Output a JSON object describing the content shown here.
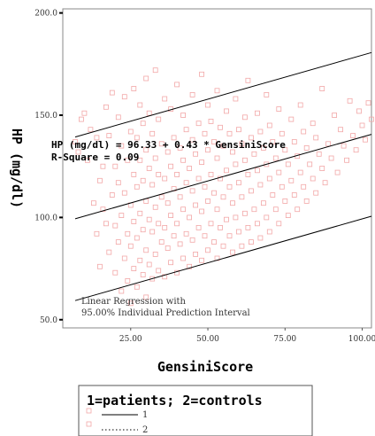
{
  "chart_data": {
    "type": "scatter",
    "xlabel": "GensiniScore",
    "ylabel": "HP (mg/dl)",
    "xlim": [
      3,
      103
    ],
    "ylim": [
      46,
      202
    ],
    "x_ticks": [
      25,
      50,
      75,
      100
    ],
    "x_tick_labels": [
      "25.00",
      "50.00",
      "75.00",
      "100.00"
    ],
    "y_ticks": [
      50,
      100,
      150,
      200
    ],
    "y_tick_labels": [
      "50.0",
      "100.0",
      "150.0",
      "200.0"
    ],
    "grid": false,
    "annotations": {
      "equation": "HP (mg/dl) = 96.33 + 0.43 * GensiniScore",
      "r_square": "R-Square = 0.09",
      "note_line1": "Linear Regression with",
      "note_line2": "95.00% Individual Prediction Interval"
    },
    "regression": {
      "intercept": 96.33,
      "slope": 0.43,
      "x_range": [
        7,
        103
      ]
    },
    "prediction_interval": {
      "offset": 40
    },
    "legend": {
      "title": "1=patients; 2=controls",
      "entries": [
        {
          "label": "1",
          "line_style": "solid"
        },
        {
          "label": "2",
          "line_style": "dotted"
        }
      ],
      "position": "bottom"
    },
    "marker_color": "#f2a7a7",
    "line_color": "#000000",
    "points": [
      [
        7,
        137
      ],
      [
        8,
        132
      ],
      [
        9,
        148
      ],
      [
        10,
        151
      ],
      [
        11,
        128
      ],
      [
        12,
        143
      ],
      [
        13,
        107
      ],
      [
        14,
        92
      ],
      [
        14,
        139
      ],
      [
        15,
        76
      ],
      [
        15,
        118
      ],
      [
        16,
        104
      ],
      [
        16,
        125
      ],
      [
        17,
        154
      ],
      [
        17,
        97
      ],
      [
        18,
        83
      ],
      [
        18,
        140
      ],
      [
        19,
        111
      ],
      [
        19,
        161
      ],
      [
        20,
        73
      ],
      [
        20,
        96
      ],
      [
        20,
        125
      ],
      [
        21,
        88
      ],
      [
        21,
        117
      ],
      [
        21,
        149
      ],
      [
        22,
        64
      ],
      [
        22,
        101
      ],
      [
        22,
        135
      ],
      [
        23,
        80
      ],
      [
        23,
        112
      ],
      [
        23,
        159
      ],
      [
        24,
        69
      ],
      [
        24,
        92
      ],
      [
        24,
        128
      ],
      [
        25,
        58
      ],
      [
        25,
        86
      ],
      [
        25,
        106
      ],
      [
        25,
        142
      ],
      [
        26,
        75
      ],
      [
        26,
        98
      ],
      [
        26,
        121
      ],
      [
        26,
        163
      ],
      [
        27,
        66
      ],
      [
        27,
        90
      ],
      [
        27,
        115
      ],
      [
        27,
        139
      ],
      [
        28,
        79
      ],
      [
        28,
        102
      ],
      [
        28,
        128
      ],
      [
        28,
        155
      ],
      [
        29,
        72
      ],
      [
        29,
        94
      ],
      [
        29,
        118
      ],
      [
        29,
        146
      ],
      [
        30,
        61
      ],
      [
        30,
        84
      ],
      [
        30,
        108
      ],
      [
        30,
        133
      ],
      [
        30,
        168
      ],
      [
        31,
        77
      ],
      [
        31,
        99
      ],
      [
        31,
        124
      ],
      [
        31,
        151
      ],
      [
        32,
        70
      ],
      [
        32,
        93
      ],
      [
        32,
        116
      ],
      [
        32,
        141
      ],
      [
        33,
        82
      ],
      [
        33,
        105
      ],
      [
        33,
        129
      ],
      [
        33,
        172
      ],
      [
        34,
        74
      ],
      [
        34,
        97
      ],
      [
        34,
        121
      ],
      [
        34,
        148
      ],
      [
        35,
        88
      ],
      [
        35,
        110
      ],
      [
        35,
        136
      ],
      [
        36,
        71
      ],
      [
        36,
        95
      ],
      [
        36,
        119
      ],
      [
        36,
        158
      ],
      [
        37,
        85
      ],
      [
        37,
        107
      ],
      [
        37,
        132
      ],
      [
        38,
        78
      ],
      [
        38,
        101
      ],
      [
        38,
        125
      ],
      [
        38,
        153
      ],
      [
        39,
        91
      ],
      [
        39,
        114
      ],
      [
        39,
        139
      ],
      [
        40,
        73
      ],
      [
        40,
        97
      ],
      [
        40,
        121
      ],
      [
        40,
        165
      ],
      [
        41,
        87
      ],
      [
        41,
        110
      ],
      [
        41,
        134
      ],
      [
        42,
        80
      ],
      [
        42,
        104
      ],
      [
        42,
        128
      ],
      [
        42,
        150
      ],
      [
        43,
        92
      ],
      [
        43,
        117
      ],
      [
        43,
        143
      ],
      [
        44,
        76
      ],
      [
        44,
        100
      ],
      [
        44,
        124
      ],
      [
        45,
        89
      ],
      [
        45,
        113
      ],
      [
        45,
        138
      ],
      [
        45,
        160
      ],
      [
        46,
        82
      ],
      [
        46,
        106
      ],
      [
        46,
        131
      ],
      [
        47,
        95
      ],
      [
        47,
        119
      ],
      [
        47,
        146
      ],
      [
        48,
        79
      ],
      [
        48,
        103
      ],
      [
        48,
        127
      ],
      [
        48,
        170
      ],
      [
        49,
        91
      ],
      [
        49,
        115
      ],
      [
        49,
        141
      ],
      [
        50,
        84
      ],
      [
        50,
        108
      ],
      [
        50,
        133
      ],
      [
        50,
        155
      ],
      [
        51,
        97
      ],
      [
        51,
        121
      ],
      [
        51,
        147
      ],
      [
        52,
        88
      ],
      [
        52,
        112
      ],
      [
        52,
        137
      ],
      [
        53,
        80
      ],
      [
        53,
        104
      ],
      [
        53,
        129
      ],
      [
        53,
        162
      ],
      [
        54,
        95
      ],
      [
        54,
        119
      ],
      [
        54,
        144
      ],
      [
        55,
        86
      ],
      [
        55,
        110
      ],
      [
        55,
        135
      ],
      [
        56,
        99
      ],
      [
        56,
        123
      ],
      [
        56,
        152
      ],
      [
        57,
        91
      ],
      [
        57,
        115
      ],
      [
        57,
        141
      ],
      [
        58,
        83
      ],
      [
        58,
        107
      ],
      [
        58,
        132
      ],
      [
        59,
        100
      ],
      [
        59,
        126
      ],
      [
        59,
        158
      ],
      [
        60,
        93
      ],
      [
        60,
        117
      ],
      [
        60,
        143
      ],
      [
        61,
        86
      ],
      [
        61,
        110
      ],
      [
        61,
        136
      ],
      [
        62,
        102
      ],
      [
        62,
        128
      ],
      [
        62,
        149
      ],
      [
        63,
        95
      ],
      [
        63,
        121
      ],
      [
        63,
        167
      ],
      [
        64,
        88
      ],
      [
        64,
        113
      ],
      [
        64,
        139
      ],
      [
        65,
        104
      ],
      [
        65,
        131
      ],
      [
        66,
        97
      ],
      [
        66,
        123
      ],
      [
        66,
        151
      ],
      [
        67,
        90
      ],
      [
        67,
        116
      ],
      [
        67,
        142
      ],
      [
        68,
        107
      ],
      [
        68,
        134
      ],
      [
        69,
        100
      ],
      [
        69,
        126
      ],
      [
        69,
        160
      ],
      [
        70,
        93
      ],
      [
        70,
        119
      ],
      [
        70,
        145
      ],
      [
        71,
        111
      ],
      [
        71,
        137
      ],
      [
        72,
        104
      ],
      [
        72,
        129
      ],
      [
        73,
        97
      ],
      [
        73,
        122
      ],
      [
        73,
        153
      ],
      [
        74,
        115
      ],
      [
        74,
        141
      ],
      [
        75,
        108
      ],
      [
        75,
        133
      ],
      [
        76,
        101
      ],
      [
        76,
        126
      ],
      [
        77,
        118
      ],
      [
        77,
        148
      ],
      [
        78,
        111
      ],
      [
        78,
        137
      ],
      [
        79,
        104
      ],
      [
        79,
        130
      ],
      [
        80,
        122
      ],
      [
        80,
        155
      ],
      [
        81,
        115
      ],
      [
        81,
        142
      ],
      [
        82,
        108
      ],
      [
        82,
        134
      ],
      [
        83,
        126
      ],
      [
        84,
        119
      ],
      [
        84,
        146
      ],
      [
        85,
        112
      ],
      [
        85,
        139
      ],
      [
        86,
        131
      ],
      [
        87,
        124
      ],
      [
        87,
        163
      ],
      [
        88,
        117
      ],
      [
        89,
        136
      ],
      [
        90,
        129
      ],
      [
        91,
        150
      ],
      [
        92,
        122
      ],
      [
        93,
        143
      ],
      [
        94,
        135
      ],
      [
        95,
        128
      ],
      [
        96,
        157
      ],
      [
        97,
        140
      ],
      [
        98,
        133
      ],
      [
        99,
        152
      ],
      [
        100,
        145
      ],
      [
        101,
        138
      ],
      [
        102,
        156
      ],
      [
        103,
        148
      ]
    ]
  }
}
